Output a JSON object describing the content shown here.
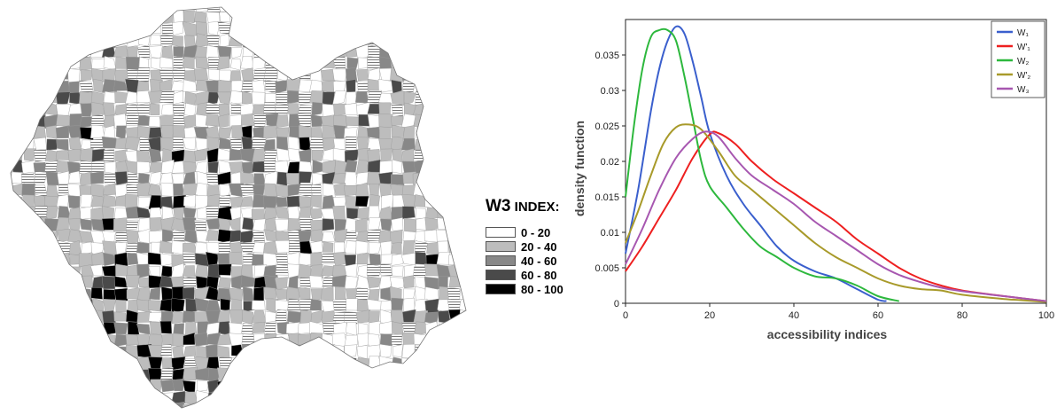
{
  "map": {
    "legend": {
      "title_prefix": "W3",
      "title_suffix": " INDEX:",
      "items": [
        {
          "label": "0 - 20",
          "color": "#ffffff"
        },
        {
          "label": "20 - 40",
          "color": "#bdbdbd"
        },
        {
          "label": "40 - 60",
          "color": "#888888"
        },
        {
          "label": "60 - 80",
          "color": "#4a4a4a"
        },
        {
          "label": "80 - 100",
          "color": "#000000"
        }
      ]
    }
  },
  "chart_data": {
    "type": "line",
    "title": "",
    "xlabel": "accessibility indices",
    "ylabel": "density function",
    "xlim": [
      0,
      100
    ],
    "ylim": [
      0,
      0.04
    ],
    "xticks": [
      "0",
      "20",
      "40",
      "60",
      "80",
      "100"
    ],
    "yticks": [
      "0",
      "0.005",
      "0.01",
      "0.015",
      "0.02",
      "0.025",
      "0.03",
      "0.035"
    ],
    "grid": false,
    "legend_position": "top-right",
    "series": [
      {
        "name": "W1",
        "legend_label": "W₁",
        "color": "#3a5fcd",
        "points": [
          [
            0,
            0.007
          ],
          [
            3,
            0.016
          ],
          [
            6,
            0.027
          ],
          [
            8,
            0.033
          ],
          [
            10,
            0.037
          ],
          [
            12,
            0.039
          ],
          [
            14,
            0.038
          ],
          [
            16,
            0.034
          ],
          [
            18,
            0.029
          ],
          [
            20,
            0.024
          ],
          [
            24,
            0.018
          ],
          [
            28,
            0.014
          ],
          [
            32,
            0.011
          ],
          [
            36,
            0.008
          ],
          [
            40,
            0.006
          ],
          [
            45,
            0.0045
          ],
          [
            50,
            0.0035
          ],
          [
            55,
            0.002
          ],
          [
            60,
            0.0005
          ],
          [
            62,
            0.0003
          ]
        ]
      },
      {
        "name": "W'1",
        "legend_label": "W'₁",
        "color": "#ee2020",
        "points": [
          [
            0,
            0.0045
          ],
          [
            4,
            0.008
          ],
          [
            8,
            0.012
          ],
          [
            12,
            0.016
          ],
          [
            16,
            0.0205
          ],
          [
            20,
            0.0238
          ],
          [
            22,
            0.024
          ],
          [
            26,
            0.0225
          ],
          [
            30,
            0.02
          ],
          [
            35,
            0.0175
          ],
          [
            40,
            0.0155
          ],
          [
            45,
            0.0135
          ],
          [
            50,
            0.0115
          ],
          [
            55,
            0.009
          ],
          [
            60,
            0.007
          ],
          [
            65,
            0.005
          ],
          [
            70,
            0.0035
          ],
          [
            75,
            0.0025
          ],
          [
            80,
            0.0018
          ],
          [
            90,
            0.001
          ],
          [
            100,
            0.0003
          ]
        ]
      },
      {
        "name": "W2",
        "legend_label": "W₂",
        "color": "#2db83d",
        "points": [
          [
            0,
            0.015
          ],
          [
            2,
            0.025
          ],
          [
            4,
            0.033
          ],
          [
            6,
            0.0375
          ],
          [
            8,
            0.0385
          ],
          [
            10,
            0.0385
          ],
          [
            12,
            0.037
          ],
          [
            14,
            0.032
          ],
          [
            16,
            0.026
          ],
          [
            18,
            0.02
          ],
          [
            20,
            0.0165
          ],
          [
            24,
            0.0135
          ],
          [
            28,
            0.0105
          ],
          [
            32,
            0.008
          ],
          [
            36,
            0.0065
          ],
          [
            40,
            0.005
          ],
          [
            45,
            0.0038
          ],
          [
            50,
            0.0035
          ],
          [
            55,
            0.0025
          ],
          [
            60,
            0.001
          ],
          [
            65,
            0.0003
          ]
        ]
      },
      {
        "name": "W'2",
        "legend_label": "W'₂",
        "color": "#a89a2a",
        "points": [
          [
            0,
            0.0085
          ],
          [
            3,
            0.013
          ],
          [
            6,
            0.018
          ],
          [
            9,
            0.0225
          ],
          [
            12,
            0.0248
          ],
          [
            15,
            0.0252
          ],
          [
            18,
            0.0245
          ],
          [
            22,
            0.0215
          ],
          [
            26,
            0.018
          ],
          [
            30,
            0.016
          ],
          [
            35,
            0.0135
          ],
          [
            40,
            0.011
          ],
          [
            45,
            0.0085
          ],
          [
            50,
            0.0065
          ],
          [
            55,
            0.005
          ],
          [
            60,
            0.0035
          ],
          [
            65,
            0.0025
          ],
          [
            70,
            0.002
          ],
          [
            75,
            0.0018
          ],
          [
            80,
            0.0012
          ],
          [
            90,
            0.0006
          ],
          [
            100,
            0.0002
          ]
        ]
      },
      {
        "name": "W3",
        "legend_label": "W₃",
        "color": "#a757b0",
        "points": [
          [
            0,
            0.0055
          ],
          [
            4,
            0.0105
          ],
          [
            8,
            0.016
          ],
          [
            12,
            0.0205
          ],
          [
            16,
            0.0232
          ],
          [
            19,
            0.0242
          ],
          [
            22,
            0.0235
          ],
          [
            26,
            0.0205
          ],
          [
            30,
            0.018
          ],
          [
            35,
            0.016
          ],
          [
            40,
            0.014
          ],
          [
            45,
            0.0115
          ],
          [
            50,
            0.0095
          ],
          [
            55,
            0.0075
          ],
          [
            60,
            0.0055
          ],
          [
            65,
            0.004
          ],
          [
            70,
            0.003
          ],
          [
            75,
            0.0022
          ],
          [
            80,
            0.0017
          ],
          [
            90,
            0.001
          ],
          [
            100,
            0.0003
          ]
        ]
      }
    ]
  }
}
